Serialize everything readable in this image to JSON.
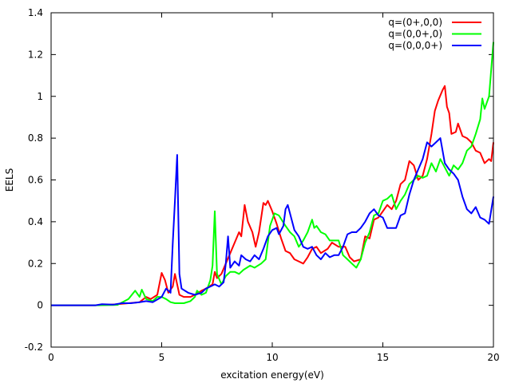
{
  "chart_data": {
    "type": "line",
    "title": "",
    "xlabel": "excitation energy(eV)",
    "ylabel": "EELS",
    "xlim": [
      0,
      20
    ],
    "ylim": [
      -0.2,
      1.4
    ],
    "xticks": [
      0,
      5,
      10,
      15,
      20
    ],
    "yticks": [
      -0.2,
      0,
      0.2,
      0.4,
      0.6,
      0.8,
      1,
      1.2,
      1.4
    ],
    "xtick_labels": [
      "0",
      "5",
      "10",
      "15",
      "20"
    ],
    "ytick_labels": [
      "-0.2",
      "0",
      "0.2",
      "0.4",
      "0.6",
      "0.8",
      "1",
      "1.2",
      "1.4"
    ],
    "grid": false,
    "legend_position": "top-right",
    "series": [
      {
        "name": "q=(0+,0,0)",
        "color": "#ff0000",
        "points": [
          [
            0,
            0
          ],
          [
            1,
            0
          ],
          [
            2,
            0
          ],
          [
            2.5,
            0.002
          ],
          [
            3,
            0.005
          ],
          [
            3.5,
            0.01
          ],
          [
            4,
            0.015
          ],
          [
            4.3,
            0.04
          ],
          [
            4.5,
            0.03
          ],
          [
            4.8,
            0.05
          ],
          [
            5.0,
            0.155
          ],
          [
            5.15,
            0.12
          ],
          [
            5.3,
            0.06
          ],
          [
            5.5,
            0.09
          ],
          [
            5.6,
            0.15
          ],
          [
            5.8,
            0.05
          ],
          [
            6.0,
            0.04
          ],
          [
            6.3,
            0.04
          ],
          [
            6.5,
            0.05
          ],
          [
            6.8,
            0.07
          ],
          [
            7.0,
            0.08
          ],
          [
            7.3,
            0.1
          ],
          [
            7.4,
            0.16
          ],
          [
            7.5,
            0.13
          ],
          [
            7.7,
            0.15
          ],
          [
            7.9,
            0.2
          ],
          [
            8.1,
            0.25
          ],
          [
            8.3,
            0.3
          ],
          [
            8.5,
            0.35
          ],
          [
            8.6,
            0.33
          ],
          [
            8.75,
            0.48
          ],
          [
            8.9,
            0.4
          ],
          [
            9.1,
            0.35
          ],
          [
            9.25,
            0.28
          ],
          [
            9.4,
            0.35
          ],
          [
            9.6,
            0.49
          ],
          [
            9.7,
            0.48
          ],
          [
            9.8,
            0.5
          ],
          [
            10.0,
            0.45
          ],
          [
            10.2,
            0.39
          ],
          [
            10.4,
            0.32
          ],
          [
            10.6,
            0.26
          ],
          [
            10.8,
            0.25
          ],
          [
            11.0,
            0.22
          ],
          [
            11.2,
            0.21
          ],
          [
            11.4,
            0.2
          ],
          [
            11.6,
            0.23
          ],
          [
            11.8,
            0.27
          ],
          [
            12.0,
            0.28
          ],
          [
            12.2,
            0.25
          ],
          [
            12.5,
            0.27
          ],
          [
            12.7,
            0.3
          ],
          [
            13.0,
            0.28
          ],
          [
            13.3,
            0.28
          ],
          [
            13.5,
            0.23
          ],
          [
            13.7,
            0.21
          ],
          [
            14.0,
            0.22
          ],
          [
            14.2,
            0.33
          ],
          [
            14.4,
            0.32
          ],
          [
            14.6,
            0.41
          ],
          [
            14.8,
            0.42
          ],
          [
            15.0,
            0.45
          ],
          [
            15.2,
            0.48
          ],
          [
            15.4,
            0.46
          ],
          [
            15.6,
            0.5
          ],
          [
            15.8,
            0.58
          ],
          [
            16.0,
            0.6
          ],
          [
            16.2,
            0.69
          ],
          [
            16.4,
            0.67
          ],
          [
            16.6,
            0.6
          ],
          [
            16.8,
            0.62
          ],
          [
            17.0,
            0.7
          ],
          [
            17.2,
            0.82
          ],
          [
            17.35,
            0.93
          ],
          [
            17.5,
            0.98
          ],
          [
            17.7,
            1.03
          ],
          [
            17.8,
            1.05
          ],
          [
            17.9,
            0.95
          ],
          [
            18.0,
            0.92
          ],
          [
            18.1,
            0.82
          ],
          [
            18.3,
            0.83
          ],
          [
            18.4,
            0.87
          ],
          [
            18.6,
            0.81
          ],
          [
            18.8,
            0.8
          ],
          [
            19.0,
            0.78
          ],
          [
            19.2,
            0.74
          ],
          [
            19.4,
            0.73
          ],
          [
            19.6,
            0.68
          ],
          [
            19.8,
            0.7
          ],
          [
            19.9,
            0.69
          ],
          [
            20.0,
            0.78
          ]
        ]
      },
      {
        "name": "q=(0,0+,0)",
        "color": "#00ff00",
        "points": [
          [
            0,
            0
          ],
          [
            2,
            0
          ],
          [
            3,
            0.002
          ],
          [
            3.5,
            0.03
          ],
          [
            3.8,
            0.07
          ],
          [
            4.0,
            0.04
          ],
          [
            4.1,
            0.075
          ],
          [
            4.3,
            0.03
          ],
          [
            4.6,
            0.02
          ],
          [
            4.8,
            0.04
          ],
          [
            5.0,
            0.04
          ],
          [
            5.2,
            0.03
          ],
          [
            5.4,
            0.015
          ],
          [
            5.6,
            0.01
          ],
          [
            6.0,
            0.01
          ],
          [
            6.3,
            0.02
          ],
          [
            6.5,
            0.04
          ],
          [
            6.6,
            0.07
          ],
          [
            6.8,
            0.05
          ],
          [
            7.0,
            0.06
          ],
          [
            7.2,
            0.12
          ],
          [
            7.3,
            0.19
          ],
          [
            7.4,
            0.45
          ],
          [
            7.5,
            0.15
          ],
          [
            7.7,
            0.1
          ],
          [
            7.9,
            0.14
          ],
          [
            8.1,
            0.16
          ],
          [
            8.3,
            0.16
          ],
          [
            8.5,
            0.15
          ],
          [
            8.7,
            0.17
          ],
          [
            9.0,
            0.19
          ],
          [
            9.2,
            0.18
          ],
          [
            9.5,
            0.2
          ],
          [
            9.7,
            0.22
          ],
          [
            9.9,
            0.38
          ],
          [
            10.1,
            0.44
          ],
          [
            10.3,
            0.43
          ],
          [
            10.6,
            0.38
          ],
          [
            10.8,
            0.35
          ],
          [
            11.0,
            0.33
          ],
          [
            11.2,
            0.28
          ],
          [
            11.4,
            0.31
          ],
          [
            11.6,
            0.35
          ],
          [
            11.8,
            0.41
          ],
          [
            11.9,
            0.37
          ],
          [
            12.0,
            0.38
          ],
          [
            12.2,
            0.35
          ],
          [
            12.4,
            0.34
          ],
          [
            12.6,
            0.31
          ],
          [
            12.8,
            0.31
          ],
          [
            13.0,
            0.31
          ],
          [
            13.2,
            0.24
          ],
          [
            13.4,
            0.22
          ],
          [
            13.6,
            0.2
          ],
          [
            13.8,
            0.18
          ],
          [
            14.0,
            0.22
          ],
          [
            14.2,
            0.3
          ],
          [
            14.4,
            0.35
          ],
          [
            14.6,
            0.43
          ],
          [
            14.8,
            0.44
          ],
          [
            15.0,
            0.5
          ],
          [
            15.2,
            0.51
          ],
          [
            15.4,
            0.53
          ],
          [
            15.6,
            0.46
          ],
          [
            15.8,
            0.5
          ],
          [
            16.0,
            0.53
          ],
          [
            16.2,
            0.58
          ],
          [
            16.4,
            0.6
          ],
          [
            16.6,
            0.62
          ],
          [
            16.8,
            0.61
          ],
          [
            17.0,
            0.62
          ],
          [
            17.2,
            0.68
          ],
          [
            17.4,
            0.64
          ],
          [
            17.6,
            0.7
          ],
          [
            17.8,
            0.66
          ],
          [
            18.0,
            0.62
          ],
          [
            18.2,
            0.67
          ],
          [
            18.4,
            0.65
          ],
          [
            18.6,
            0.68
          ],
          [
            18.8,
            0.74
          ],
          [
            19.0,
            0.76
          ],
          [
            19.2,
            0.82
          ],
          [
            19.4,
            0.89
          ],
          [
            19.5,
            0.99
          ],
          [
            19.6,
            0.94
          ],
          [
            19.8,
            1.0
          ],
          [
            20.0,
            1.26
          ]
        ]
      },
      {
        "name": "q=(0,0,0+)",
        "color": "#0000ff",
        "points": [
          [
            0,
            0
          ],
          [
            2,
            0
          ],
          [
            2.3,
            0.005
          ],
          [
            2.8,
            0.003
          ],
          [
            3.2,
            0.01
          ],
          [
            3.6,
            0.01
          ],
          [
            4.0,
            0.015
          ],
          [
            4.3,
            0.02
          ],
          [
            4.6,
            0.015
          ],
          [
            5.0,
            0.04
          ],
          [
            5.2,
            0.08
          ],
          [
            5.4,
            0.06
          ],
          [
            5.5,
            0.3
          ],
          [
            5.6,
            0.5
          ],
          [
            5.7,
            0.72
          ],
          [
            5.8,
            0.15
          ],
          [
            5.9,
            0.08
          ],
          [
            6.2,
            0.06
          ],
          [
            6.5,
            0.05
          ],
          [
            6.8,
            0.06
          ],
          [
            7.0,
            0.08
          ],
          [
            7.2,
            0.09
          ],
          [
            7.4,
            0.1
          ],
          [
            7.6,
            0.09
          ],
          [
            7.8,
            0.11
          ],
          [
            7.9,
            0.2
          ],
          [
            8.0,
            0.33
          ],
          [
            8.1,
            0.18
          ],
          [
            8.3,
            0.21
          ],
          [
            8.5,
            0.19
          ],
          [
            8.6,
            0.24
          ],
          [
            8.8,
            0.22
          ],
          [
            9.0,
            0.21
          ],
          [
            9.2,
            0.24
          ],
          [
            9.4,
            0.22
          ],
          [
            9.6,
            0.27
          ],
          [
            9.8,
            0.33
          ],
          [
            10.0,
            0.36
          ],
          [
            10.2,
            0.37
          ],
          [
            10.3,
            0.34
          ],
          [
            10.5,
            0.38
          ],
          [
            10.6,
            0.46
          ],
          [
            10.7,
            0.48
          ],
          [
            10.8,
            0.44
          ],
          [
            11.0,
            0.36
          ],
          [
            11.2,
            0.33
          ],
          [
            11.4,
            0.28
          ],
          [
            11.6,
            0.27
          ],
          [
            11.8,
            0.28
          ],
          [
            12.0,
            0.24
          ],
          [
            12.2,
            0.22
          ],
          [
            12.4,
            0.25
          ],
          [
            12.6,
            0.23
          ],
          [
            12.8,
            0.24
          ],
          [
            13.0,
            0.24
          ],
          [
            13.2,
            0.28
          ],
          [
            13.4,
            0.34
          ],
          [
            13.6,
            0.35
          ],
          [
            13.8,
            0.35
          ],
          [
            14.0,
            0.37
          ],
          [
            14.2,
            0.4
          ],
          [
            14.4,
            0.44
          ],
          [
            14.6,
            0.46
          ],
          [
            14.8,
            0.43
          ],
          [
            15.0,
            0.42
          ],
          [
            15.2,
            0.37
          ],
          [
            15.4,
            0.37
          ],
          [
            15.6,
            0.37
          ],
          [
            15.8,
            0.43
          ],
          [
            16.0,
            0.44
          ],
          [
            16.2,
            0.53
          ],
          [
            16.4,
            0.6
          ],
          [
            16.6,
            0.65
          ],
          [
            16.8,
            0.7
          ],
          [
            17.0,
            0.78
          ],
          [
            17.2,
            0.76
          ],
          [
            17.4,
            0.78
          ],
          [
            17.6,
            0.8
          ],
          [
            17.8,
            0.68
          ],
          [
            18.0,
            0.65
          ],
          [
            18.2,
            0.63
          ],
          [
            18.4,
            0.6
          ],
          [
            18.6,
            0.52
          ],
          [
            18.8,
            0.46
          ],
          [
            19.0,
            0.44
          ],
          [
            19.2,
            0.47
          ],
          [
            19.4,
            0.42
          ],
          [
            19.6,
            0.41
          ],
          [
            19.8,
            0.39
          ],
          [
            20.0,
            0.52
          ]
        ]
      }
    ]
  }
}
